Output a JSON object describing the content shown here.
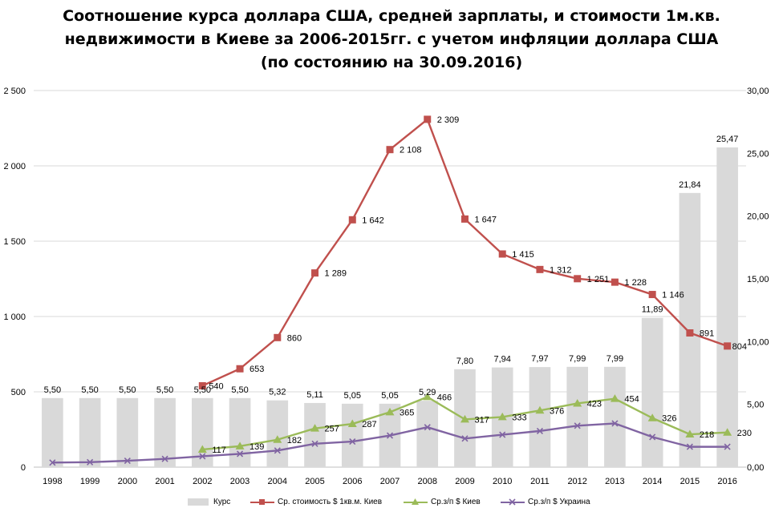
{
  "chart_data": {
    "type": "bar",
    "title_lines": [
      "Соотношение курса доллара США, средней зарплаты, и стоимости 1м.кв.",
      "недвижимости в Киеве за 2006-2015гг.  с учетом инфляции доллара США",
      "(по состоянию на 30.09.2016)"
    ],
    "categories": [
      "1998",
      "1999",
      "2000",
      "2001",
      "2002",
      "2003",
      "2004",
      "2005",
      "2006",
      "2007",
      "2008",
      "2009",
      "2010",
      "2011",
      "2012",
      "2013",
      "2014",
      "2015",
      "2016"
    ],
    "left_axis": {
      "ylim": [
        0,
        2500
      ],
      "ticks": [
        0,
        500,
        1000,
        1500,
        2000,
        2500
      ],
      "tick_labels": [
        "0",
        "500",
        "1 000",
        "1 500",
        "2 000",
        "2 500"
      ]
    },
    "right_axis": {
      "ylim": [
        0,
        30
      ],
      "ticks": [
        0,
        5,
        10,
        15,
        20,
        25,
        30
      ],
      "tick_labels": [
        "0,00",
        "5,00",
        "10,00",
        "15,00",
        "20,00",
        "25,00",
        "30,00"
      ]
    },
    "series": [
      {
        "name": "Курс",
        "kind": "bar",
        "axis": "right",
        "color": "#d9d9d9",
        "values": [
          5.5,
          5.5,
          5.5,
          5.5,
          5.5,
          5.5,
          5.32,
          5.11,
          5.05,
          5.05,
          5.29,
          7.8,
          7.94,
          7.97,
          7.99,
          7.99,
          11.89,
          21.84,
          25.47
        ],
        "labels": [
          "5,50",
          "5,50",
          "5,50",
          "5,50",
          "5,50",
          "5,50",
          "5,32",
          "5,11",
          "5,05",
          "5,05",
          "5,29",
          "7,80",
          "7,94",
          "7,97",
          "7,99",
          "7,99",
          "11,89",
          "21,84",
          "25,47"
        ]
      },
      {
        "name": "Ср. стоимость $ 1кв.м. Киев",
        "kind": "line",
        "axis": "left",
        "color": "#c0504d",
        "marker": "square",
        "values": [
          null,
          null,
          null,
          null,
          540,
          653,
          860,
          1289,
          1642,
          2108,
          2309,
          1647,
          1415,
          1312,
          1251,
          1228,
          1146,
          891,
          804
        ],
        "labels": [
          "",
          "",
          "",
          "",
          "540",
          "653",
          "860",
          "1 289",
          "1 642",
          "2 108",
          "2 309",
          "1 647",
          "1 415",
          "1 312",
          "1 251",
          "1 228",
          "1 146",
          "891",
          "804"
        ]
      },
      {
        "name": "Ср.з/п $ Киев",
        "kind": "line",
        "axis": "left",
        "color": "#9bbb59",
        "marker": "triangle",
        "values": [
          null,
          null,
          null,
          null,
          117,
          139,
          182,
          257,
          287,
          365,
          466,
          317,
          333,
          376,
          423,
          454,
          326,
          218,
          230
        ],
        "labels": [
          "",
          "",
          "",
          "",
          "117",
          "139",
          "182",
          "257",
          "287",
          "365",
          "466",
          "317",
          "333",
          "376",
          "423",
          "454",
          "326",
          "218",
          "230"
        ]
      },
      {
        "name": "Ср.з/п $ Украина",
        "kind": "line",
        "axis": "left",
        "color": "#8064a2",
        "marker": "x",
        "values": [
          30,
          33,
          42,
          55,
          72,
          88,
          110,
          155,
          170,
          210,
          265,
          190,
          215,
          240,
          275,
          290,
          200,
          135,
          135
        ],
        "labels": []
      }
    ],
    "legend_position": "bottom",
    "grid": true
  }
}
